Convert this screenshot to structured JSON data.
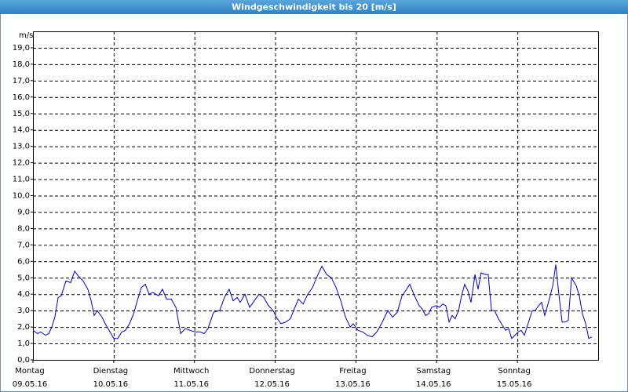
{
  "chart_data": {
    "type": "line",
    "title": "Windgeschwindigkeit bis 20 [m/s]",
    "y_label": "m/s",
    "xlim": [
      0,
      168
    ],
    "ylim": [
      0,
      20
    ],
    "grid": true,
    "xticks": [
      {
        "value": 0,
        "label": "Montag",
        "date": "09.05.16"
      },
      {
        "value": 24,
        "label": "Dienstag",
        "date": "10.05.16"
      },
      {
        "value": 48,
        "label": "Mittwoch",
        "date": "11.05.16"
      },
      {
        "value": 72,
        "label": "Donnerstag",
        "date": "12.05.16"
      },
      {
        "value": 96,
        "label": "Freitag",
        "date": "13.05.16"
      },
      {
        "value": 120,
        "label": "Samstag",
        "date": "14.05.16"
      },
      {
        "value": 144,
        "label": "Sonntag",
        "date": "15.05.16"
      }
    ],
    "yticks": [
      {
        "value": 0,
        "label": "0,0"
      },
      {
        "value": 1,
        "label": "1,0"
      },
      {
        "value": 2,
        "label": "2,0"
      },
      {
        "value": 3,
        "label": "3,0"
      },
      {
        "value": 4,
        "label": "4,0"
      },
      {
        "value": 5,
        "label": "5,0"
      },
      {
        "value": 6,
        "label": "6,0"
      },
      {
        "value": 7,
        "label": "7,0"
      },
      {
        "value": 8,
        "label": "8,0"
      },
      {
        "value": 9,
        "label": "9,0"
      },
      {
        "value": 10,
        "label": "10,0"
      },
      {
        "value": 11,
        "label": "11,0"
      },
      {
        "value": 12,
        "label": "12,0"
      },
      {
        "value": 13,
        "label": "13,0"
      },
      {
        "value": 14,
        "label": "14,0"
      },
      {
        "value": 15,
        "label": "15,0"
      },
      {
        "value": 16,
        "label": "16,0"
      },
      {
        "value": 17,
        "label": "17,0"
      },
      {
        "value": 18,
        "label": "18,0"
      },
      {
        "value": 19,
        "label": "19,0"
      }
    ],
    "x": [
      0,
      1.4,
      2.3,
      3.7,
      4.7,
      5.6,
      6.5,
      7.5,
      8.4,
      9.8,
      11.2,
      12.4,
      13.5,
      14.9,
      16.3,
      17.3,
      18.2,
      19.1,
      20.5,
      21.5,
      22.9,
      24.0,
      25.2,
      26.4,
      27.5,
      28.7,
      29.9,
      31.0,
      32.2,
      33.4,
      34.5,
      35.7,
      37.3,
      38.5,
      39.7,
      41.1,
      42.5,
      43.9,
      45.3,
      46.7,
      48.1,
      49.7,
      50.9,
      52.0,
      53.7,
      55.5,
      56.9,
      58.3,
      59.5,
      60.7,
      61.6,
      63.0,
      64.4,
      65.8,
      67.2,
      68.6,
      70.0,
      71.4,
      72.3,
      73.7,
      75.1,
      76.5,
      77.5,
      78.9,
      80.3,
      81.7,
      83.1,
      84.5,
      85.9,
      87.3,
      88.7,
      90.1,
      91.5,
      92.9,
      94.3,
      95.2,
      96.6,
      98.0,
      99.4,
      100.8,
      102.2,
      103.6,
      104.5,
      105.5,
      106.9,
      108.3,
      109.7,
      111.1,
      112.0,
      113.4,
      114.8,
      115.7,
      116.7,
      117.6,
      118.5,
      119.9,
      120.9,
      121.8,
      122.7,
      123.7,
      124.6,
      125.5,
      126.5,
      127.4,
      128.3,
      129.3,
      130.2,
      131.4,
      132.3,
      133.2,
      134.4,
      135.3,
      136.3,
      137.2,
      138.1,
      139.5,
      140.5,
      141.4,
      142.3,
      143.3,
      144.2,
      145.1,
      146.1,
      147.0,
      148.4,
      149.3,
      150.3,
      151.2,
      152.1,
      153.1,
      154.5,
      155.4,
      156.3,
      157.3,
      158.2,
      159.1,
      160.1,
      161.5,
      162.4,
      163.3,
      164.3,
      165.2,
      166.1
    ],
    "series": [
      {
        "name": "Windgeschwindigkeit",
        "color": "#0000c8",
        "values": [
          1.8,
          1.6,
          1.7,
          1.5,
          1.6,
          2.0,
          2.6,
          3.8,
          3.9,
          4.8,
          4.7,
          5.4,
          5.1,
          4.8,
          4.3,
          3.6,
          2.7,
          3.0,
          2.6,
          2.2,
          1.7,
          1.3,
          1.3,
          1.7,
          1.8,
          2.2,
          2.8,
          3.6,
          4.4,
          4.6,
          4.0,
          4.1,
          3.9,
          4.3,
          3.7,
          3.7,
          3.2,
          1.6,
          1.9,
          1.8,
          1.7,
          1.7,
          1.6,
          1.9,
          2.9,
          3.0,
          3.8,
          4.3,
          3.6,
          3.8,
          3.5,
          4.0,
          3.2,
          3.6,
          4.0,
          3.8,
          3.3,
          3.0,
          2.6,
          2.2,
          2.3,
          2.5,
          3.0,
          3.7,
          3.4,
          4.0,
          4.4,
          5.1,
          5.7,
          5.2,
          5.0,
          4.4,
          3.6,
          2.6,
          2.0,
          2.2,
          1.8,
          1.7,
          1.5,
          1.4,
          1.7,
          2.2,
          2.6,
          3.0,
          2.6,
          2.9,
          3.9,
          4.3,
          4.6,
          3.9,
          3.3,
          3.1,
          2.7,
          2.8,
          3.2,
          3.3,
          3.2,
          3.4,
          3.3,
          2.3,
          2.7,
          2.5,
          3.0,
          3.9,
          4.6,
          4.2,
          3.5,
          5.2,
          4.3,
          5.3,
          5.2,
          5.2,
          3.0,
          3.0,
          2.6,
          2.1,
          1.8,
          1.9,
          1.3,
          1.5,
          1.7,
          1.8,
          1.5,
          2.1,
          3.0,
          3.0,
          3.3,
          3.5,
          2.7,
          3.4,
          4.5,
          5.8,
          4.0,
          2.3,
          2.3,
          2.4,
          5.0,
          4.5,
          3.9,
          2.8,
          2.2,
          1.3,
          1.4
        ]
      }
    ]
  }
}
